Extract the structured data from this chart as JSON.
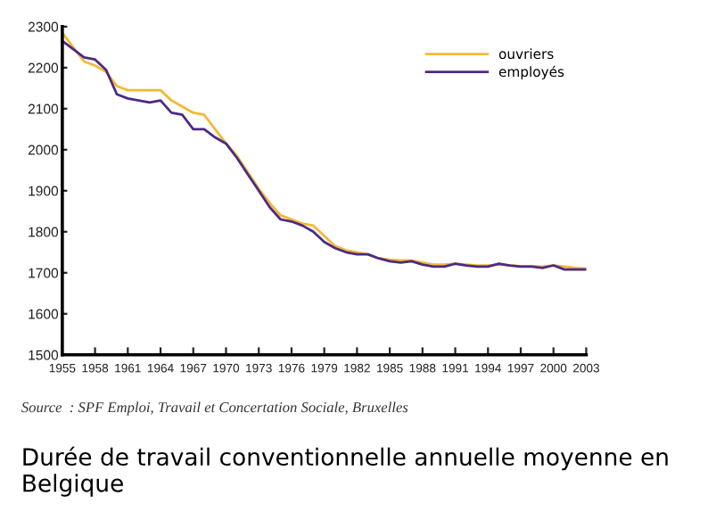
{
  "chart_data": {
    "type": "line",
    "title": "Durée de travail conventionnelle annuelle moyenne en Belgique",
    "annotations": [
      "Source  : SPF Emploi, Travail et Concertation Sociale, Bruxelles"
    ],
    "x": [
      1955,
      1956,
      1957,
      1958,
      1959,
      1960,
      1961,
      1962,
      1963,
      1964,
      1965,
      1966,
      1967,
      1968,
      1969,
      1970,
      1971,
      1972,
      1973,
      1974,
      1975,
      1976,
      1977,
      1978,
      1979,
      1980,
      1981,
      1982,
      1983,
      1984,
      1985,
      1986,
      1987,
      1988,
      1989,
      1990,
      1991,
      1992,
      1993,
      1994,
      1995,
      1996,
      1997,
      1998,
      1999,
      2000,
      2001,
      2002,
      2003
    ],
    "series": [
      {
        "name": "ouvriers",
        "color": "#f5b934",
        "values": [
          2285,
          2250,
          2215,
          2205,
          2190,
          2155,
          2145,
          2145,
          2145,
          2145,
          2120,
          2105,
          2090,
          2085,
          2050,
          2015,
          1985,
          1945,
          1905,
          1870,
          1840,
          1830,
          1820,
          1815,
          1790,
          1765,
          1755,
          1750,
          1745,
          1735,
          1732,
          1730,
          1730,
          1725,
          1720,
          1720,
          1722,
          1720,
          1718,
          1718,
          1720,
          1718,
          1716,
          1716,
          1715,
          1718,
          1715,
          1712,
          1710
        ]
      },
      {
        "name": "employés",
        "color": "#4b2a86",
        "values": [
          2265,
          2245,
          2225,
          2220,
          2195,
          2135,
          2125,
          2120,
          2115,
          2120,
          2090,
          2085,
          2050,
          2050,
          2030,
          2015,
          1980,
          1940,
          1900,
          1860,
          1830,
          1825,
          1815,
          1800,
          1775,
          1760,
          1750,
          1745,
          1745,
          1735,
          1728,
          1725,
          1728,
          1720,
          1715,
          1715,
          1722,
          1718,
          1715,
          1715,
          1722,
          1718,
          1715,
          1715,
          1712,
          1718,
          1708,
          1708,
          1708
        ]
      }
    ],
    "xlim": [
      1955,
      2003
    ],
    "xticks": [
      1955,
      1958,
      1961,
      1964,
      1967,
      1970,
      1973,
      1976,
      1979,
      1982,
      1985,
      1988,
      1991,
      1994,
      1997,
      2000,
      2003
    ],
    "ylim": [
      1500,
      2300
    ],
    "yticks": [
      1500,
      1600,
      1700,
      1800,
      1900,
      2000,
      2100,
      2200,
      2300
    ],
    "grid": false,
    "legend": "top right",
    "marker": "none",
    "line_style": "solid"
  }
}
